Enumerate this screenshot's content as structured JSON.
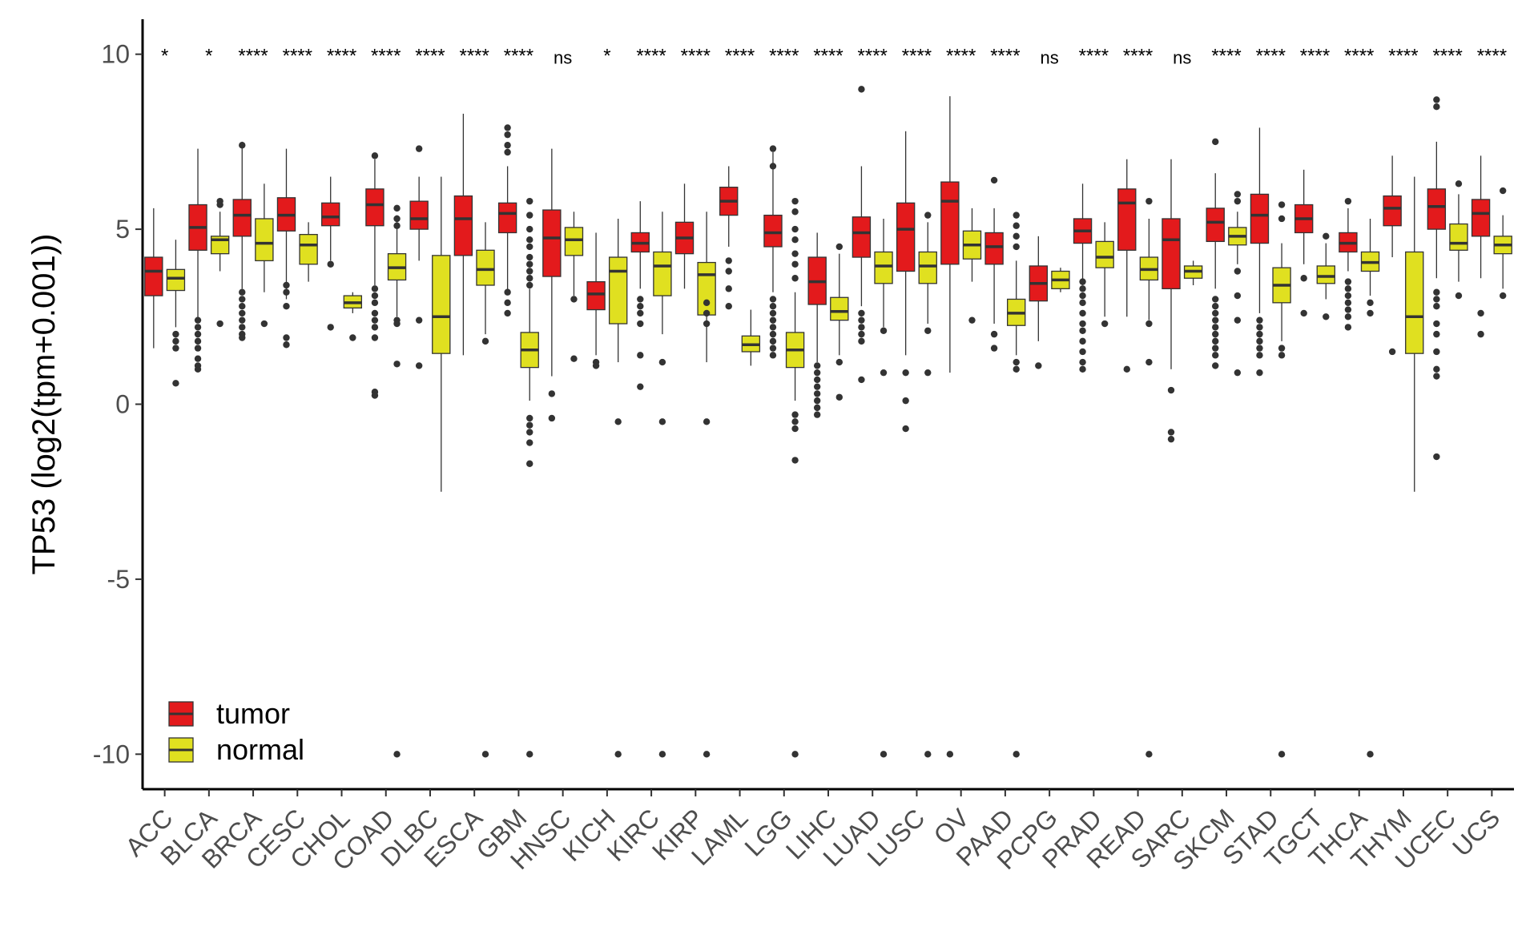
{
  "chart_data": {
    "type": "box",
    "title": "",
    "xlabel": "",
    "ylabel": "TP53 (log2(tpm+0.001))",
    "ylim": [
      -11.0,
      11.0
    ],
    "yticks": [
      10,
      5,
      0,
      -5,
      -10
    ],
    "grid": false,
    "legend_position": "bottom-left",
    "series": [
      {
        "name": "tumor",
        "color": "#E31A1C"
      },
      {
        "name": "normal",
        "color": "#E0E020"
      }
    ],
    "categories": [
      "ACC",
      "BLCA",
      "BRCA",
      "CESC",
      "CHOL",
      "COAD",
      "DLBC",
      "ESCA",
      "GBM",
      "HNSC",
      "KICH",
      "KIRC",
      "KIRP",
      "LAML",
      "LGG",
      "LIHC",
      "LUAD",
      "LUSC",
      "OV",
      "PAAD",
      "PCPG",
      "PRAD",
      "READ",
      "SARC",
      "SKCM",
      "STAD",
      "TGCT",
      "THCA",
      "THYM",
      "UCEC",
      "UCS"
    ],
    "significance": [
      "*",
      "*",
      "****",
      "****",
      "****",
      "****",
      "****",
      "****",
      "****",
      "ns",
      "*",
      "****",
      "****",
      "****",
      "****",
      "****",
      "****",
      "****",
      "****",
      "****",
      "ns",
      "****",
      "****",
      "ns",
      "****",
      "****",
      "****",
      "****",
      "****",
      "****",
      "****"
    ],
    "boxes": [
      {
        "group": "ACC",
        "tumor": {
          "min": 1.6,
          "q1": 3.1,
          "median": 3.8,
          "q3": 4.2,
          "max": 5.6,
          "outliers": []
        },
        "normal": {
          "min": 2.2,
          "q1": 3.25,
          "median": 3.6,
          "q3": 3.85,
          "max": 4.7,
          "outliers": [
            2.0,
            1.8,
            1.6,
            0.6
          ]
        }
      },
      {
        "group": "BLCA",
        "tumor": {
          "min": 2.4,
          "q1": 4.4,
          "median": 5.05,
          "q3": 5.7,
          "max": 7.3,
          "outliers": [
            2.4,
            2.2,
            2.0,
            1.8,
            1.6,
            1.3,
            1.1,
            1.0
          ]
        },
        "normal": {
          "min": 3.8,
          "q1": 4.3,
          "median": 4.7,
          "q3": 4.8,
          "max": 5.5,
          "outliers": [
            5.7,
            5.8,
            2.3
          ]
        }
      },
      {
        "group": "BRCA",
        "tumor": {
          "min": 3.3,
          "q1": 4.8,
          "median": 5.4,
          "q3": 5.85,
          "max": 7.5,
          "outliers": [
            7.4,
            3.2,
            3.0,
            2.8,
            2.6,
            2.4,
            2.2,
            2.0,
            1.9
          ]
        },
        "normal": {
          "min": 3.2,
          "q1": 4.1,
          "median": 4.6,
          "q3": 5.3,
          "max": 6.3,
          "outliers": [
            2.3
          ]
        }
      },
      {
        "group": "CESC",
        "tumor": {
          "min": 3.0,
          "q1": 4.95,
          "median": 5.4,
          "q3": 5.9,
          "max": 7.3,
          "outliers": [
            3.4,
            3.2,
            2.8,
            1.9,
            1.7
          ]
        },
        "normal": {
          "min": 3.5,
          "q1": 4.0,
          "median": 4.55,
          "q3": 4.85,
          "max": 5.2,
          "outliers": []
        }
      },
      {
        "group": "CHOL",
        "tumor": {
          "min": 4.1,
          "q1": 5.1,
          "median": 5.35,
          "q3": 5.75,
          "max": 6.5,
          "outliers": [
            4.0,
            2.2
          ]
        },
        "normal": {
          "min": 2.6,
          "q1": 2.75,
          "median": 2.9,
          "q3": 3.1,
          "max": 3.2,
          "outliers": [
            1.9
          ]
        }
      },
      {
        "group": "COAD",
        "tumor": {
          "min": 3.4,
          "q1": 5.1,
          "median": 5.7,
          "q3": 6.15,
          "max": 7.0,
          "outliers": [
            7.1,
            3.3,
            3.1,
            2.9,
            2.6,
            2.4,
            2.2,
            1.9,
            0.35,
            0.25
          ]
        },
        "normal": {
          "min": 2.5,
          "q1": 3.55,
          "median": 3.9,
          "q3": 4.3,
          "max": 5.4,
          "outliers": [
            5.6,
            5.3,
            5.1,
            2.4,
            2.3,
            1.15,
            -10
          ]
        }
      },
      {
        "group": "DLBC",
        "tumor": {
          "min": 4.1,
          "q1": 5.0,
          "median": 5.3,
          "q3": 5.8,
          "max": 6.5,
          "outliers": [
            7.3,
            2.4,
            1.1
          ]
        },
        "normal": {
          "min": -2.5,
          "q1": 1.45,
          "median": 2.5,
          "q3": 4.25,
          "max": 6.5,
          "outliers": []
        }
      },
      {
        "group": "ESCA",
        "tumor": {
          "min": 1.4,
          "q1": 4.25,
          "median": 5.3,
          "q3": 5.95,
          "max": 8.3,
          "outliers": []
        },
        "normal": {
          "min": 2.0,
          "q1": 3.4,
          "median": 3.85,
          "q3": 4.4,
          "max": 5.2,
          "outliers": [
            1.8,
            -10
          ]
        }
      },
      {
        "group": "GBM",
        "tumor": {
          "min": 3.2,
          "q1": 4.9,
          "median": 5.45,
          "q3": 5.75,
          "max": 6.8,
          "outliers": [
            7.9,
            7.7,
            7.4,
            7.2,
            3.2,
            2.9,
            2.6
          ]
        },
        "normal": {
          "min": 0.1,
          "q1": 1.05,
          "median": 1.55,
          "q3": 2.05,
          "max": 3.3,
          "outliers": [
            5.8,
            5.4,
            5.0,
            4.7,
            4.5,
            4.2,
            4.0,
            3.8,
            3.6,
            3.4,
            -0.4,
            -0.6,
            -0.8,
            -1.1,
            -1.7,
            -10
          ]
        }
      },
      {
        "group": "HNSC",
        "tumor": {
          "min": 0.8,
          "q1": 3.65,
          "median": 4.75,
          "q3": 5.55,
          "max": 7.3,
          "outliers": [
            0.3,
            -0.4
          ]
        },
        "normal": {
          "min": 3.1,
          "q1": 4.25,
          "median": 4.7,
          "q3": 5.05,
          "max": 5.5,
          "outliers": [
            3.0,
            1.3
          ]
        }
      },
      {
        "group": "KICH",
        "tumor": {
          "min": 1.4,
          "q1": 2.7,
          "median": 3.15,
          "q3": 3.5,
          "max": 4.9,
          "outliers": [
            1.2,
            1.1
          ]
        },
        "normal": {
          "min": 1.2,
          "q1": 2.3,
          "median": 3.8,
          "q3": 4.2,
          "max": 5.3,
          "outliers": [
            -0.5,
            -10
          ]
        }
      },
      {
        "group": "KIRC",
        "tumor": {
          "min": 3.3,
          "q1": 4.35,
          "median": 4.6,
          "q3": 4.9,
          "max": 5.8,
          "outliers": [
            3.0,
            2.8,
            2.6,
            2.3,
            1.4,
            0.5
          ]
        },
        "normal": {
          "min": 2.0,
          "q1": 3.1,
          "median": 3.95,
          "q3": 4.35,
          "max": 5.5,
          "outliers": [
            1.2,
            -0.5,
            -10
          ]
        }
      },
      {
        "group": "KIRP",
        "tumor": {
          "min": 3.3,
          "q1": 4.3,
          "median": 4.75,
          "q3": 5.2,
          "max": 6.3,
          "outliers": []
        },
        "normal": {
          "min": 1.2,
          "q1": 2.55,
          "median": 3.7,
          "q3": 4.05,
          "max": 5.5,
          "outliers": [
            2.9,
            2.6,
            2.3,
            -0.5,
            -10
          ]
        }
      },
      {
        "group": "LAML",
        "tumor": {
          "min": 4.5,
          "q1": 5.4,
          "median": 5.8,
          "q3": 6.2,
          "max": 6.8,
          "outliers": [
            4.1,
            3.8,
            3.3,
            2.8
          ]
        },
        "normal": {
          "min": 1.1,
          "q1": 1.5,
          "median": 1.7,
          "q3": 1.95,
          "max": 2.7,
          "outliers": []
        }
      },
      {
        "group": "LGG",
        "tumor": {
          "min": 3.2,
          "q1": 4.5,
          "median": 4.9,
          "q3": 5.4,
          "max": 7.2,
          "outliers": [
            7.3,
            6.8,
            3.0,
            2.8,
            2.6,
            2.4,
            2.2,
            2.0,
            1.8,
            1.6,
            1.4
          ]
        },
        "normal": {
          "min": 0.1,
          "q1": 1.05,
          "median": 1.55,
          "q3": 2.05,
          "max": 3.2,
          "outliers": [
            5.8,
            5.5,
            5.0,
            4.7,
            4.3,
            4.0,
            3.6,
            -0.3,
            -0.5,
            -0.7,
            -1.6,
            -10
          ]
        }
      },
      {
        "group": "LIHC",
        "tumor": {
          "min": 1.2,
          "q1": 2.85,
          "median": 3.5,
          "q3": 4.2,
          "max": 4.9,
          "outliers": [
            1.1,
            0.9,
            0.7,
            0.5,
            0.3,
            0.1,
            -0.1,
            -0.3
          ]
        },
        "normal": {
          "min": 1.4,
          "q1": 2.4,
          "median": 2.65,
          "q3": 3.05,
          "max": 4.3,
          "outliers": [
            4.5,
            1.2,
            0.2
          ]
        }
      },
      {
        "group": "LUAD",
        "tumor": {
          "min": 2.8,
          "q1": 4.2,
          "median": 4.9,
          "q3": 5.35,
          "max": 6.8,
          "outliers": [
            9.0,
            2.6,
            2.4,
            2.2,
            2.0,
            1.8,
            0.7
          ]
        },
        "normal": {
          "min": 2.2,
          "q1": 3.45,
          "median": 3.95,
          "q3": 4.35,
          "max": 5.3,
          "outliers": [
            2.1,
            0.9,
            -10
          ]
        }
      },
      {
        "group": "LUSC",
        "tumor": {
          "min": 1.4,
          "q1": 3.8,
          "median": 5.0,
          "q3": 5.75,
          "max": 7.8,
          "outliers": [
            0.9,
            0.1,
            -0.7
          ]
        },
        "normal": {
          "min": 2.3,
          "q1": 3.45,
          "median": 3.95,
          "q3": 4.35,
          "max": 5.2,
          "outliers": [
            5.4,
            2.1,
            0.9,
            -10
          ]
        }
      },
      {
        "group": "OV",
        "tumor": {
          "min": 0.9,
          "q1": 4.0,
          "median": 5.8,
          "q3": 6.35,
          "max": 8.8,
          "outliers": [
            -10
          ]
        },
        "normal": {
          "min": 3.5,
          "q1": 4.15,
          "median": 4.55,
          "q3": 4.95,
          "max": 5.6,
          "outliers": [
            2.4
          ]
        }
      },
      {
        "group": "PAAD",
        "tumor": {
          "min": 2.3,
          "q1": 4.0,
          "median": 4.5,
          "q3": 4.9,
          "max": 5.6,
          "outliers": [
            6.4,
            2.0,
            1.6
          ]
        },
        "normal": {
          "min": 1.4,
          "q1": 2.25,
          "median": 2.6,
          "q3": 3.0,
          "max": 4.1,
          "outliers": [
            5.4,
            5.1,
            4.8,
            4.5,
            1.2,
            1.0,
            -10
          ]
        }
      },
      {
        "group": "PCPG",
        "tumor": {
          "min": 1.8,
          "q1": 2.95,
          "median": 3.45,
          "q3": 3.95,
          "max": 4.8,
          "outliers": [
            1.1
          ]
        },
        "normal": {
          "min": 3.2,
          "q1": 3.3,
          "median": 3.55,
          "q3": 3.8,
          "max": 3.9,
          "outliers": []
        }
      },
      {
        "group": "PRAD",
        "tumor": {
          "min": 3.4,
          "q1": 4.6,
          "median": 4.95,
          "q3": 5.3,
          "max": 6.3,
          "outliers": [
            3.5,
            3.3,
            3.1,
            2.9,
            2.6,
            2.3,
            2.1,
            1.8,
            1.5,
            1.2,
            1.0
          ]
        },
        "normal": {
          "min": 2.5,
          "q1": 3.9,
          "median": 4.2,
          "q3": 4.65,
          "max": 5.2,
          "outliers": [
            2.3
          ]
        }
      },
      {
        "group": "READ",
        "tumor": {
          "min": 2.5,
          "q1": 4.4,
          "median": 5.75,
          "q3": 6.15,
          "max": 7.0,
          "outliers": [
            1.0
          ]
        },
        "normal": {
          "min": 2.4,
          "q1": 3.55,
          "median": 3.85,
          "q3": 4.2,
          "max": 5.3,
          "outliers": [
            5.8,
            2.3,
            1.2,
            -10
          ]
        }
      },
      {
        "group": "SARC",
        "tumor": {
          "min": 1.0,
          "q1": 3.3,
          "median": 4.7,
          "q3": 5.3,
          "max": 7.0,
          "outliers": [
            0.4,
            -0.8,
            -1.0
          ]
        },
        "normal": {
          "min": 3.4,
          "q1": 3.6,
          "median": 3.8,
          "q3": 3.95,
          "max": 4.1,
          "outliers": []
        }
      },
      {
        "group": "SKCM",
        "tumor": {
          "min": 3.3,
          "q1": 4.65,
          "median": 5.2,
          "q3": 5.6,
          "max": 6.6,
          "outliers": [
            7.5,
            3.0,
            2.8,
            2.6,
            2.4,
            2.2,
            2.0,
            1.8,
            1.6,
            1.4,
            1.1
          ]
        },
        "normal": {
          "min": 4.0,
          "q1": 4.55,
          "median": 4.8,
          "q3": 5.05,
          "max": 5.5,
          "outliers": [
            6.0,
            5.8,
            3.8,
            3.1,
            2.4,
            0.9
          ]
        }
      },
      {
        "group": "STAD",
        "tumor": {
          "min": 2.6,
          "q1": 4.6,
          "median": 5.4,
          "q3": 6.0,
          "max": 7.9,
          "outliers": [
            2.4,
            2.2,
            2.0,
            1.8,
            1.6,
            1.4,
            0.9
          ]
        },
        "normal": {
          "min": 1.8,
          "q1": 2.9,
          "median": 3.4,
          "q3": 3.9,
          "max": 4.6,
          "outliers": [
            5.7,
            5.3,
            1.6,
            1.4,
            -10
          ]
        }
      },
      {
        "group": "TGCT",
        "tumor": {
          "min": 4.0,
          "q1": 4.9,
          "median": 5.3,
          "q3": 5.7,
          "max": 6.7,
          "outliers": [
            3.6,
            2.6
          ]
        },
        "normal": {
          "min": 3.0,
          "q1": 3.45,
          "median": 3.65,
          "q3": 3.95,
          "max": 4.6,
          "outliers": [
            4.8,
            2.5
          ]
        }
      },
      {
        "group": "THCA",
        "tumor": {
          "min": 3.8,
          "q1": 4.35,
          "median": 4.6,
          "q3": 4.9,
          "max": 5.6,
          "outliers": [
            5.8,
            3.5,
            3.3,
            3.1,
            2.9,
            2.7,
            2.5,
            2.2
          ]
        },
        "normal": {
          "min": 3.1,
          "q1": 3.8,
          "median": 4.05,
          "q3": 4.35,
          "max": 5.3,
          "outliers": [
            2.9,
            2.6,
            -10
          ]
        }
      },
      {
        "group": "THYM",
        "tumor": {
          "min": 4.2,
          "q1": 5.1,
          "median": 5.6,
          "q3": 5.95,
          "max": 7.1,
          "outliers": [
            1.5
          ]
        },
        "normal": {
          "min": -2.5,
          "q1": 1.45,
          "median": 2.5,
          "q3": 4.35,
          "max": 6.5,
          "outliers": []
        }
      },
      {
        "group": "UCEC",
        "tumor": {
          "min": 3.6,
          "q1": 5.0,
          "median": 5.65,
          "q3": 6.15,
          "max": 7.5,
          "outliers": [
            8.7,
            8.5,
            3.2,
            3.0,
            2.8,
            2.3,
            2.0,
            1.5,
            1.0,
            0.8,
            -1.5
          ]
        },
        "normal": {
          "min": 3.5,
          "q1": 4.4,
          "median": 4.6,
          "q3": 5.15,
          "max": 6.0,
          "outliers": [
            6.3,
            3.1
          ]
        }
      },
      {
        "group": "UCS",
        "tumor": {
          "min": 3.6,
          "q1": 4.8,
          "median": 5.45,
          "q3": 5.85,
          "max": 7.1,
          "outliers": [
            2.6,
            2.0
          ]
        },
        "normal": {
          "min": 3.3,
          "q1": 4.3,
          "median": 4.55,
          "q3": 4.8,
          "max": 5.4,
          "outliers": [
            6.1,
            3.1
          ]
        }
      }
    ]
  }
}
